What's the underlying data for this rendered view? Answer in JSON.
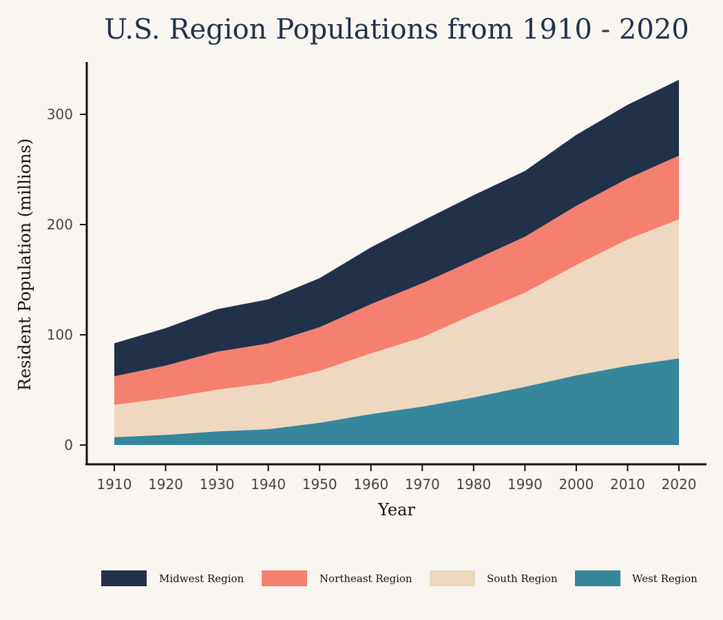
{
  "chart_data": {
    "type": "area",
    "stacked": true,
    "title": "U.S. Region Populations from 1910 - 2020",
    "xlabel": "Year",
    "ylabel": "Resident Population (millions)",
    "x": [
      1910,
      1920,
      1930,
      1940,
      1950,
      1960,
      1970,
      1980,
      1990,
      2000,
      2010,
      2020
    ],
    "xlim": [
      1910,
      2020
    ],
    "ylim": [
      0,
      330
    ],
    "yticks": [
      0,
      100,
      200,
      300
    ],
    "grid": false,
    "legend_position": "bottom",
    "series": [
      {
        "name": "Midwest Region",
        "color": "#22314a",
        "values": [
          29.9,
          34.0,
          38.6,
          40.1,
          44.5,
          51.6,
          56.6,
          58.9,
          59.7,
          64.4,
          66.9,
          68.8
        ]
      },
      {
        "name": "Northeast Region",
        "color": "#f5806f",
        "values": [
          25.9,
          29.7,
          34.4,
          36.0,
          39.5,
          44.7,
          49.1,
          49.1,
          50.8,
          53.6,
          55.3,
          57.6
        ]
      },
      {
        "name": "South Region",
        "color": "#eed8c0",
        "values": [
          29.4,
          33.1,
          37.9,
          41.7,
          47.2,
          55.0,
          62.8,
          75.4,
          85.4,
          100.2,
          114.6,
          126.3
        ]
      },
      {
        "name": "West Region",
        "color": "#36869c",
        "values": [
          7.1,
          9.2,
          12.3,
          14.4,
          20.2,
          28.1,
          34.8,
          43.2,
          52.8,
          63.2,
          71.9,
          78.6
        ]
      }
    ]
  }
}
